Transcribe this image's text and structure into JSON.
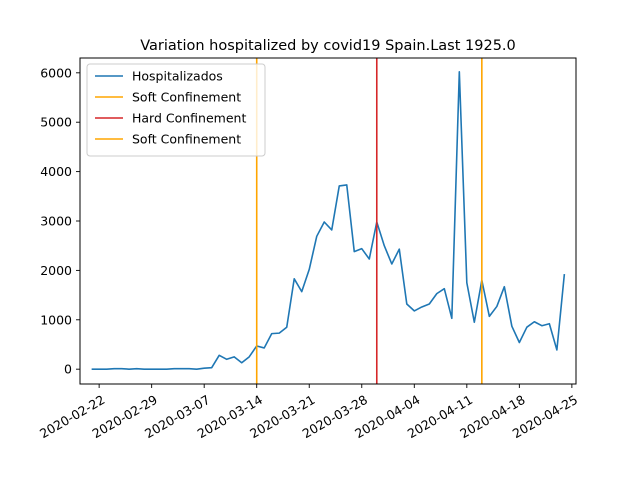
{
  "chart_data": {
    "type": "line",
    "title": "Variation hospitalized by covid19 Spain.Last  1925.0",
    "xlabel": "",
    "ylabel": "",
    "x_start": "2020-02-21",
    "ylim": [
      -300,
      6300
    ],
    "yticks": [
      0,
      1000,
      2000,
      3000,
      4000,
      5000,
      6000
    ],
    "xticks": [
      {
        "label": "2020-02-22",
        "date": "2020-02-22"
      },
      {
        "label": "2020-02-29",
        "date": "2020-02-29"
      },
      {
        "label": "2020-03-07",
        "date": "2020-03-07"
      },
      {
        "label": "2020-03-14",
        "date": "2020-03-14"
      },
      {
        "label": "2020-03-21",
        "date": "2020-03-21"
      },
      {
        "label": "2020-03-28",
        "date": "2020-03-28"
      },
      {
        "label": "2020-04-04",
        "date": "2020-04-04"
      },
      {
        "label": "2020-04-11",
        "date": "2020-04-11"
      },
      {
        "label": "2020-04-18",
        "date": "2020-04-18"
      },
      {
        "label": "2020-04-25",
        "date": "2020-04-25"
      }
    ],
    "grid": false,
    "legend": "top-left",
    "series": [
      {
        "name": "Hospitalizados",
        "color": "#1f77b4",
        "values": [
          0,
          0,
          0,
          10,
          10,
          0,
          10,
          0,
          0,
          0,
          0,
          10,
          10,
          10,
          0,
          20,
          30,
          280,
          200,
          250,
          130,
          250,
          470,
          430,
          720,
          730,
          850,
          1830,
          1570,
          2020,
          2690,
          2980,
          2820,
          3710,
          3730,
          2380,
          2440,
          2230,
          2980,
          2500,
          2130,
          2430,
          1320,
          1180,
          1260,
          1320,
          1530,
          1630,
          1030,
          6020,
          1750,
          950,
          1800,
          1070,
          1270,
          1670,
          870,
          540,
          850,
          960,
          880,
          920,
          390,
          1925
        ]
      }
    ],
    "vlines": [
      {
        "name": "Soft Confinement",
        "color": "#ffa500",
        "date": "2020-03-14"
      },
      {
        "name": "Hard Confinement",
        "color": "#d62728",
        "date": "2020-03-30"
      },
      {
        "name": "Soft Confinement",
        "color": "#ffa500",
        "date": "2020-04-13"
      }
    ]
  }
}
